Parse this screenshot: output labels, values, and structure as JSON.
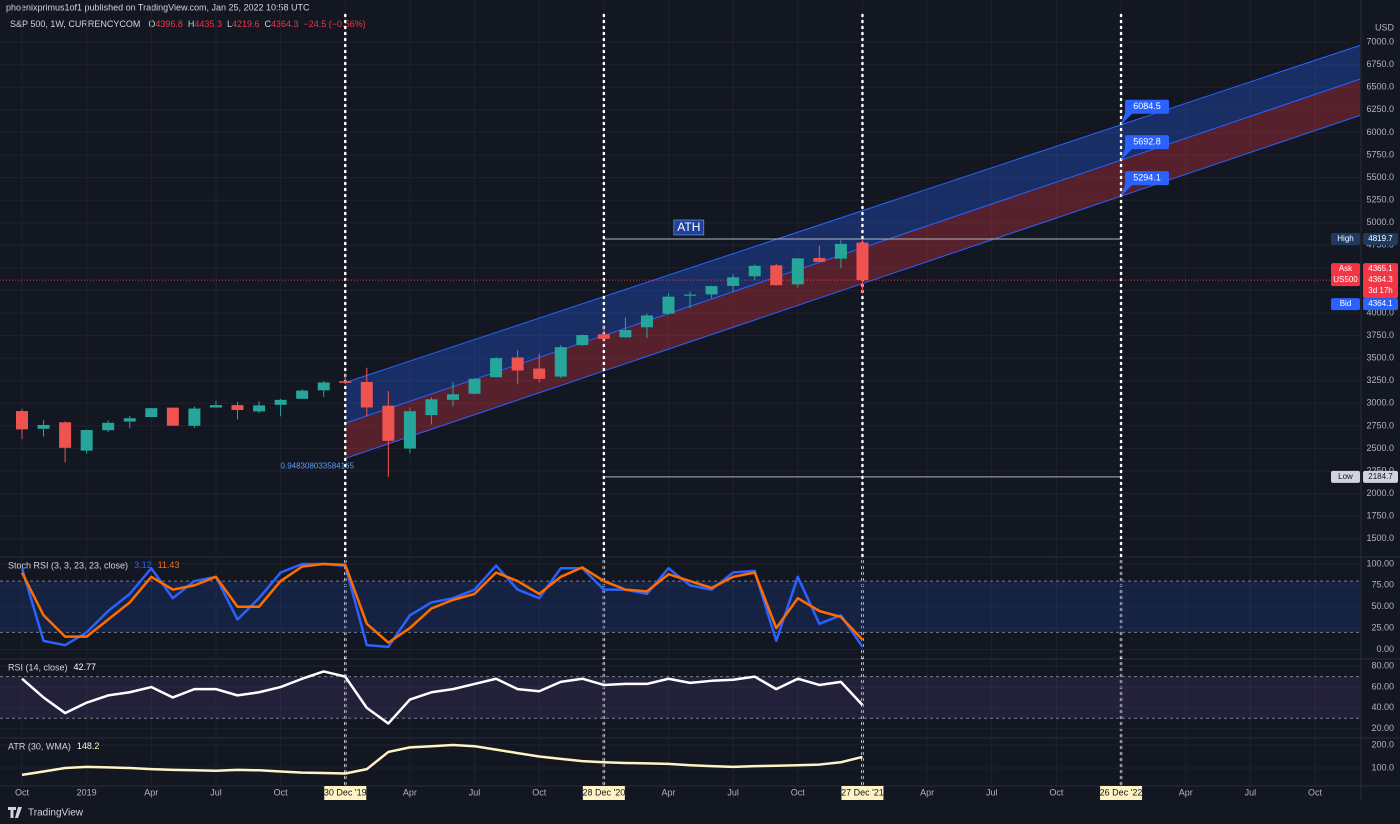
{
  "header": {
    "publisher": "phoenixprimus1of1 published on TradingView.com, Jan 25, 2022 10:58 UTC",
    "symbol": "S&P 500, 1W, CURRENCYCOM",
    "ohlc": [
      {
        "label": "O",
        "value": 4396.8
      },
      {
        "label": "H",
        "value": 4435.3
      },
      {
        "label": "L",
        "value": 4219.6
      },
      {
        "label": "C",
        "value": 4364.3
      }
    ],
    "change": "−24.5 (−0.56%)"
  },
  "footer": {
    "brand": "TradingView"
  },
  "chart_data": [
    {
      "type": "candlestick",
      "categories": [
        "Oct",
        null,
        null,
        "2019",
        null,
        null,
        "Apr",
        null,
        null,
        "Jul",
        null,
        null,
        "Oct",
        null,
        null,
        "30 Dec '19",
        null,
        null,
        "Apr",
        null,
        null,
        "Jul",
        null,
        null,
        "Oct",
        null,
        null,
        "28 Dec '20",
        null,
        null,
        "Apr",
        null,
        null,
        "Jul",
        null,
        null,
        "Oct",
        null,
        null,
        "27 Dec '21",
        null,
        null,
        "Apr",
        null,
        null,
        "Jul",
        null,
        null,
        "Oct",
        null,
        null,
        "26 Dec '22",
        null,
        null,
        "Apr",
        null,
        null,
        "Jul",
        null,
        null,
        "Oct"
      ],
      "open": [
        2914,
        2718,
        2790,
        2476,
        2702,
        2798,
        2848,
        2952,
        2751,
        2953,
        2980,
        2910,
        2983,
        3050,
        3144,
        3244,
        3236,
        2974,
        2499,
        2869,
        3038,
        3105,
        3289,
        3508,
        3385,
        3296,
        3645,
        3764,
        3731,
        3842,
        3992,
        4191,
        4206,
        4300,
        4407,
        4528,
        4317,
        4610,
        4602,
        4779,
        null,
        null,
        null,
        null,
        null,
        null,
        null,
        null,
        null,
        null,
        null,
        null,
        null,
        null,
        null,
        null,
        null,
        null,
        null,
        null,
        null
      ],
      "high": [
        2940,
        2815,
        2800,
        2708,
        2813,
        2860,
        2949,
        2954,
        2964,
        3027,
        3014,
        3022,
        3050,
        3154,
        3248,
        3337,
        3394,
        3136,
        2954,
        3068,
        3233,
        3280,
        3514,
        3588,
        3550,
        3646,
        3760,
        3870,
        3950,
        3994,
        4218,
        4238,
        4302,
        4429,
        4537,
        4546,
        4608,
        4743,
        4808,
        4819.7,
        null,
        null,
        null,
        null,
        null,
        null,
        null,
        null,
        null,
        null,
        null,
        null,
        null,
        null,
        null,
        null,
        null,
        null,
        null,
        null,
        null
      ],
      "low": [
        2603,
        2631,
        2346,
        2443,
        2681,
        2722,
        2848,
        2751,
        2728,
        2953,
        2822,
        2891,
        2856,
        3050,
        3070,
        3214,
        2855,
        2184.7,
        2448,
        2766,
        2965,
        3101,
        3285,
        3209,
        3233,
        3280,
        3633,
        3694,
        3725,
        3723,
        3981,
        4056,
        4164,
        4233,
        4367,
        4306,
        4279,
        4560,
        4495,
        4219.6,
        null,
        null,
        null,
        null,
        null,
        null,
        null,
        null,
        null,
        null,
        null,
        null,
        null,
        null,
        null,
        null,
        null,
        null,
        null,
        null,
        null
      ],
      "close": [
        2711,
        2760,
        2507,
        2704,
        2784,
        2834,
        2946,
        2752,
        2942,
        2980,
        2926,
        2977,
        3038,
        3141,
        3231,
        3226,
        2954,
        2585,
        2912,
        3044,
        3100,
        3271,
        3500,
        3363,
        3270,
        3622,
        3756,
        3714,
        3811,
        3973,
        4181,
        4204,
        4298,
        4395,
        4523,
        4308,
        4605,
        4567,
        4766,
        4364.3,
        null,
        null,
        null,
        null,
        null,
        null,
        null,
        null,
        null,
        null,
        null,
        null,
        null,
        null,
        null,
        null,
        null,
        null,
        null,
        null,
        null
      ],
      "up_color": "#26a69a",
      "down_color": "#ef5350",
      "ylim": [
        1320,
        7090
      ],
      "yticks": [
        {
          "value": 1500,
          "label": "1500.0"
        },
        {
          "value": 1750,
          "label": "1750.0"
        },
        {
          "value": 2000,
          "label": "2000.0"
        },
        {
          "value": 2250,
          "label": "2250.0"
        },
        {
          "value": 2500,
          "label": "2500.0"
        },
        {
          "value": 2750,
          "label": "2750.0"
        },
        {
          "value": 3000,
          "label": "3000.0"
        },
        {
          "value": 3250,
          "label": "3250.0"
        },
        {
          "value": 3500,
          "label": "3500.0"
        },
        {
          "value": 3750,
          "label": "3750.0"
        },
        {
          "value": 4000,
          "label": "4000.0"
        },
        {
          "value": 4250,
          "label": "4250.0"
        },
        {
          "value": 4500,
          "label": "4500.0"
        },
        {
          "value": 4750,
          "label": "4750.0"
        },
        {
          "value": 5000,
          "label": "5000.0"
        },
        {
          "value": 5250,
          "label": "5250.0"
        },
        {
          "value": 5500,
          "label": "5500.0"
        },
        {
          "value": 5750,
          "label": "5750.0"
        },
        {
          "value": 6000,
          "label": "6000.0"
        },
        {
          "value": 6250,
          "label": "6250.0"
        },
        {
          "value": 6500,
          "label": "6500.0"
        },
        {
          "value": 6750,
          "label": "6750.0"
        },
        {
          "value": 7000,
          "label": "7000.0"
        }
      ],
      "y_unit": "USD",
      "grid": true,
      "vlines": [
        "30 Dec '19",
        "28 Dec '20",
        "27 Dec '21",
        "26 Dec '22"
      ],
      "channel": {
        "x": [
          "30 Dec '19",
          "26 Dec '22"
        ],
        "upper": [
          3230,
          6084.5
        ],
        "middle": [
          2780,
          5692.8
        ],
        "lower": [
          2390,
          5294.1
        ],
        "upper_color": "#2962ff",
        "lower_color": "#f23645",
        "line_color": "#2962ff",
        "label_color": "#2962ff",
        "ratio_label": "0.948308033584165"
      },
      "hlines": [
        {
          "label": "High",
          "value": 4819.7,
          "x": [
            "28 Dec '20",
            "26 Dec '22"
          ]
        },
        {
          "label": "Low",
          "value": 2184.7,
          "x": [
            "28 Dec '20",
            "26 Dec '22"
          ]
        }
      ],
      "annotation": "ATH",
      "last": {
        "label": "US500",
        "value": 4364.3,
        "countdown": "3d 17h",
        "color": "#f23645"
      },
      "ask": {
        "label": "Ask",
        "value": 4365.1,
        "color": "#f23645"
      },
      "bid": {
        "label": "Bid",
        "value": 4364.1,
        "color": "#2962ff"
      }
    },
    {
      "type": "line",
      "title": "Stoch RSI (3, 3, 23, 23, close)",
      "series": [
        {
          "color": "#2962ff",
          "values": [
            95,
            10,
            5,
            20,
            45,
            65,
            95,
            60,
            80,
            85,
            35,
            60,
            90,
            100,
            100,
            98,
            5,
            3,
            40,
            55,
            60,
            70,
            98,
            70,
            60,
            95,
            95,
            70,
            70,
            65,
            95,
            75,
            70,
            90,
            92,
            10,
            85,
            30,
            40,
            3.12,
            null,
            null,
            null,
            null,
            null,
            null,
            null,
            null,
            null,
            null,
            null,
            null,
            null,
            null,
            null,
            null,
            null,
            null,
            null,
            null,
            null
          ]
        },
        {
          "color": "#ff6d00",
          "values": [
            90,
            40,
            15,
            15,
            35,
            55,
            85,
            70,
            75,
            85,
            50,
            50,
            80,
            97,
            100,
            99,
            30,
            8,
            25,
            48,
            58,
            65,
            90,
            80,
            65,
            85,
            96,
            80,
            70,
            68,
            88,
            80,
            72,
            85,
            90,
            25,
            60,
            45,
            38,
            11.43,
            null,
            null,
            null,
            null,
            null,
            null,
            null,
            null,
            null,
            null,
            null,
            null,
            null,
            null,
            null,
            null,
            null,
            null,
            null,
            null,
            null
          ]
        }
      ],
      "ylim": [
        -10,
        107
      ],
      "yticks": [
        {
          "value": 0,
          "label": "0.00"
        },
        {
          "value": 25,
          "label": "25.00"
        },
        {
          "value": 50,
          "label": "50.00"
        },
        {
          "value": 75,
          "label": "75.00"
        },
        {
          "value": 100,
          "label": "100.00"
        }
      ],
      "band": [
        20,
        80
      ],
      "band_color": "#2962ff",
      "grid": true
    },
    {
      "type": "line",
      "title": "RSI (14, close)",
      "series": [
        {
          "color": "#ffffff",
          "values": [
            68,
            50,
            35,
            45,
            52,
            55,
            60,
            50,
            58,
            58,
            52,
            55,
            60,
            68,
            75,
            70,
            40,
            25,
            48,
            55,
            58,
            63,
            68,
            58,
            56,
            65,
            68,
            62,
            63,
            63,
            68,
            64,
            66,
            67,
            70,
            58,
            68,
            62,
            65,
            42.77,
            null,
            null,
            null,
            null,
            null,
            null,
            null,
            null,
            null,
            null,
            null,
            null,
            null,
            null,
            null,
            null,
            null,
            null,
            null,
            null,
            null
          ]
        }
      ],
      "ylim": [
        12,
        86
      ],
      "yticks": [
        {
          "value": 20,
          "label": "20.00"
        },
        {
          "value": 40,
          "label": "40.00"
        },
        {
          "value": 60,
          "label": "60.00"
        },
        {
          "value": 80,
          "label": "80.00"
        }
      ],
      "band": [
        30,
        70
      ],
      "band_color": "#7e57c2",
      "grid": true
    },
    {
      "type": "line",
      "title": "ATR (30, WMA)",
      "series": [
        {
          "color": "#fff3c4",
          "values": [
            70,
            85,
            100,
            105,
            103,
            100,
            95,
            92,
            90,
            88,
            92,
            90,
            85,
            80,
            78,
            76,
            95,
            170,
            190,
            195,
            200,
            195,
            180,
            165,
            150,
            140,
            130,
            125,
            122,
            120,
            118,
            112,
            108,
            105,
            108,
            110,
            112,
            115,
            125,
            148.2,
            null,
            null,
            null,
            null,
            null,
            null,
            null,
            null,
            null,
            null,
            null,
            null,
            null,
            null,
            null,
            null,
            null,
            null,
            null,
            null,
            null
          ]
        }
      ],
      "ylim": [
        26,
        222
      ],
      "yticks": [
        {
          "value": 100,
          "label": "100.0"
        },
        {
          "value": 200,
          "label": "200.0"
        }
      ],
      "grid": true
    }
  ]
}
